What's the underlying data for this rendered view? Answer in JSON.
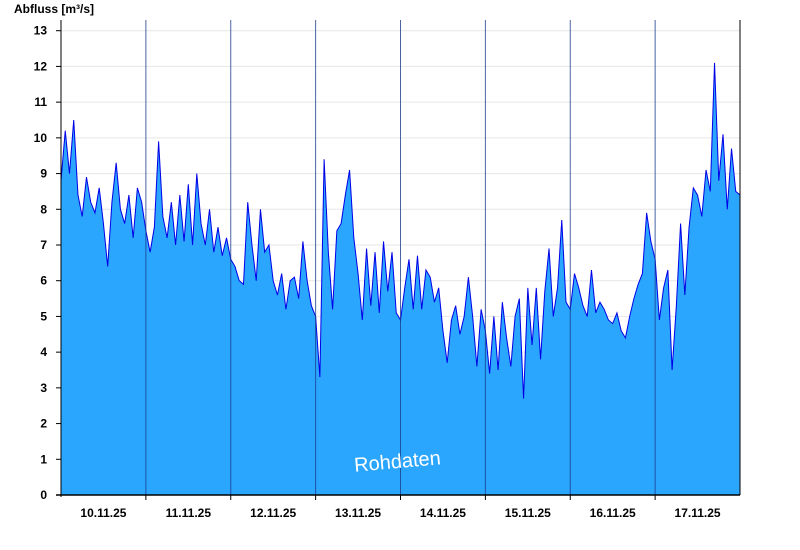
{
  "chart_data": {
    "type": "area",
    "ylabel": "Abfluss [m³/s]",
    "ylim": [
      0,
      13.3
    ],
    "yticks": [
      0,
      1,
      2,
      3,
      4,
      5,
      6,
      7,
      8,
      9,
      10,
      11,
      12,
      13
    ],
    "xlim": [
      0,
      8
    ],
    "day_ticks": [
      1,
      2,
      3,
      4,
      5,
      6,
      7
    ],
    "xtick_labels": [
      "10.11.25",
      "11.11.25",
      "12.11.25",
      "13.11.25",
      "14.11.25",
      "15.11.25",
      "16.11.25",
      "17.11.25"
    ],
    "annotation": "Rohdaten",
    "grid": true,
    "fill_color": "#2ba6ff",
    "line_color": "#0000e6",
    "series": [
      {
        "x": [
          0.0,
          0.05,
          0.1,
          0.15,
          0.2,
          0.25,
          0.3,
          0.35,
          0.4,
          0.45,
          0.5,
          0.55,
          0.6,
          0.65,
          0.7,
          0.75,
          0.8,
          0.85,
          0.9,
          0.95,
          1.0,
          1.05,
          1.1,
          1.15,
          1.2,
          1.25,
          1.3,
          1.35,
          1.4,
          1.45,
          1.5,
          1.55,
          1.6,
          1.65,
          1.7,
          1.75,
          1.8,
          1.85,
          1.9,
          1.95,
          2.0,
          2.05,
          2.1,
          2.15,
          2.2,
          2.25,
          2.3,
          2.35,
          2.4,
          2.45,
          2.5,
          2.55,
          2.6,
          2.65,
          2.7,
          2.75,
          2.8,
          2.85,
          2.9,
          2.95,
          3.0,
          3.05,
          3.1,
          3.15,
          3.2,
          3.25,
          3.3,
          3.35,
          3.4,
          3.45,
          3.5,
          3.55,
          3.6,
          3.65,
          3.7,
          3.75,
          3.8,
          3.85,
          3.9,
          3.95,
          4.0,
          4.05,
          4.1,
          4.15,
          4.2,
          4.25,
          4.3,
          4.35,
          4.4,
          4.45,
          4.5,
          4.55,
          4.6,
          4.65,
          4.7,
          4.75,
          4.8,
          4.85,
          4.9,
          4.95,
          5.0,
          5.05,
          5.1,
          5.15,
          5.2,
          5.25,
          5.3,
          5.35,
          5.4,
          5.45,
          5.5,
          5.55,
          5.6,
          5.65,
          5.7,
          5.75,
          5.8,
          5.85,
          5.9,
          5.95,
          6.0,
          6.05,
          6.1,
          6.15,
          6.2,
          6.25,
          6.3,
          6.35,
          6.4,
          6.45,
          6.5,
          6.55,
          6.6,
          6.65,
          6.7,
          6.75,
          6.8,
          6.85,
          6.9,
          6.95,
          7.0,
          7.05,
          7.1,
          7.15,
          7.2,
          7.25,
          7.3,
          7.35,
          7.4,
          7.45,
          7.5,
          7.55,
          7.6,
          7.65,
          7.7,
          7.75,
          7.8,
          7.85,
          7.9,
          7.95,
          8.0
        ],
        "y": [
          8.8,
          10.2,
          9.0,
          10.5,
          8.4,
          7.8,
          8.9,
          8.2,
          7.9,
          8.6,
          7.6,
          6.4,
          8.2,
          9.3,
          8.0,
          7.6,
          8.4,
          7.2,
          8.6,
          8.2,
          7.4,
          6.8,
          7.5,
          9.9,
          7.8,
          7.2,
          8.2,
          7.0,
          8.4,
          7.1,
          8.7,
          7.0,
          9.0,
          7.6,
          7.0,
          8.0,
          6.8,
          7.5,
          6.7,
          7.2,
          6.6,
          6.4,
          6.0,
          5.9,
          8.2,
          7.0,
          6.0,
          8.0,
          6.8,
          7.0,
          6.0,
          5.6,
          6.2,
          5.2,
          6.0,
          6.1,
          5.5,
          7.1,
          6.0,
          5.3,
          5.0,
          3.3,
          9.4,
          6.8,
          5.2,
          7.4,
          7.6,
          8.4,
          9.1,
          7.2,
          6.2,
          4.9,
          6.9,
          5.3,
          6.8,
          5.1,
          7.1,
          5.7,
          6.8,
          5.1,
          4.9,
          5.8,
          6.6,
          5.2,
          6.7,
          5.2,
          6.3,
          6.1,
          5.4,
          5.8,
          4.6,
          3.7,
          4.9,
          5.3,
          4.5,
          5.0,
          6.1,
          5.0,
          3.6,
          5.2,
          4.6,
          3.4,
          5.0,
          3.5,
          5.4,
          4.4,
          3.6,
          5.0,
          5.5,
          2.7,
          5.8,
          4.2,
          5.8,
          3.8,
          5.7,
          6.9,
          5.0,
          5.8,
          7.7,
          5.4,
          5.2,
          6.2,
          5.8,
          5.3,
          5.0,
          6.3,
          5.1,
          5.4,
          5.2,
          4.9,
          4.8,
          5.1,
          4.6,
          4.4,
          5.0,
          5.5,
          5.9,
          6.2,
          7.9,
          7.1,
          6.6,
          4.9,
          5.8,
          6.3,
          3.5,
          5.3,
          7.6,
          5.6,
          7.5,
          8.6,
          8.4,
          7.8,
          9.1,
          8.5,
          12.1,
          8.8,
          10.1,
          8.0,
          9.7,
          8.5,
          8.4
        ]
      }
    ]
  }
}
